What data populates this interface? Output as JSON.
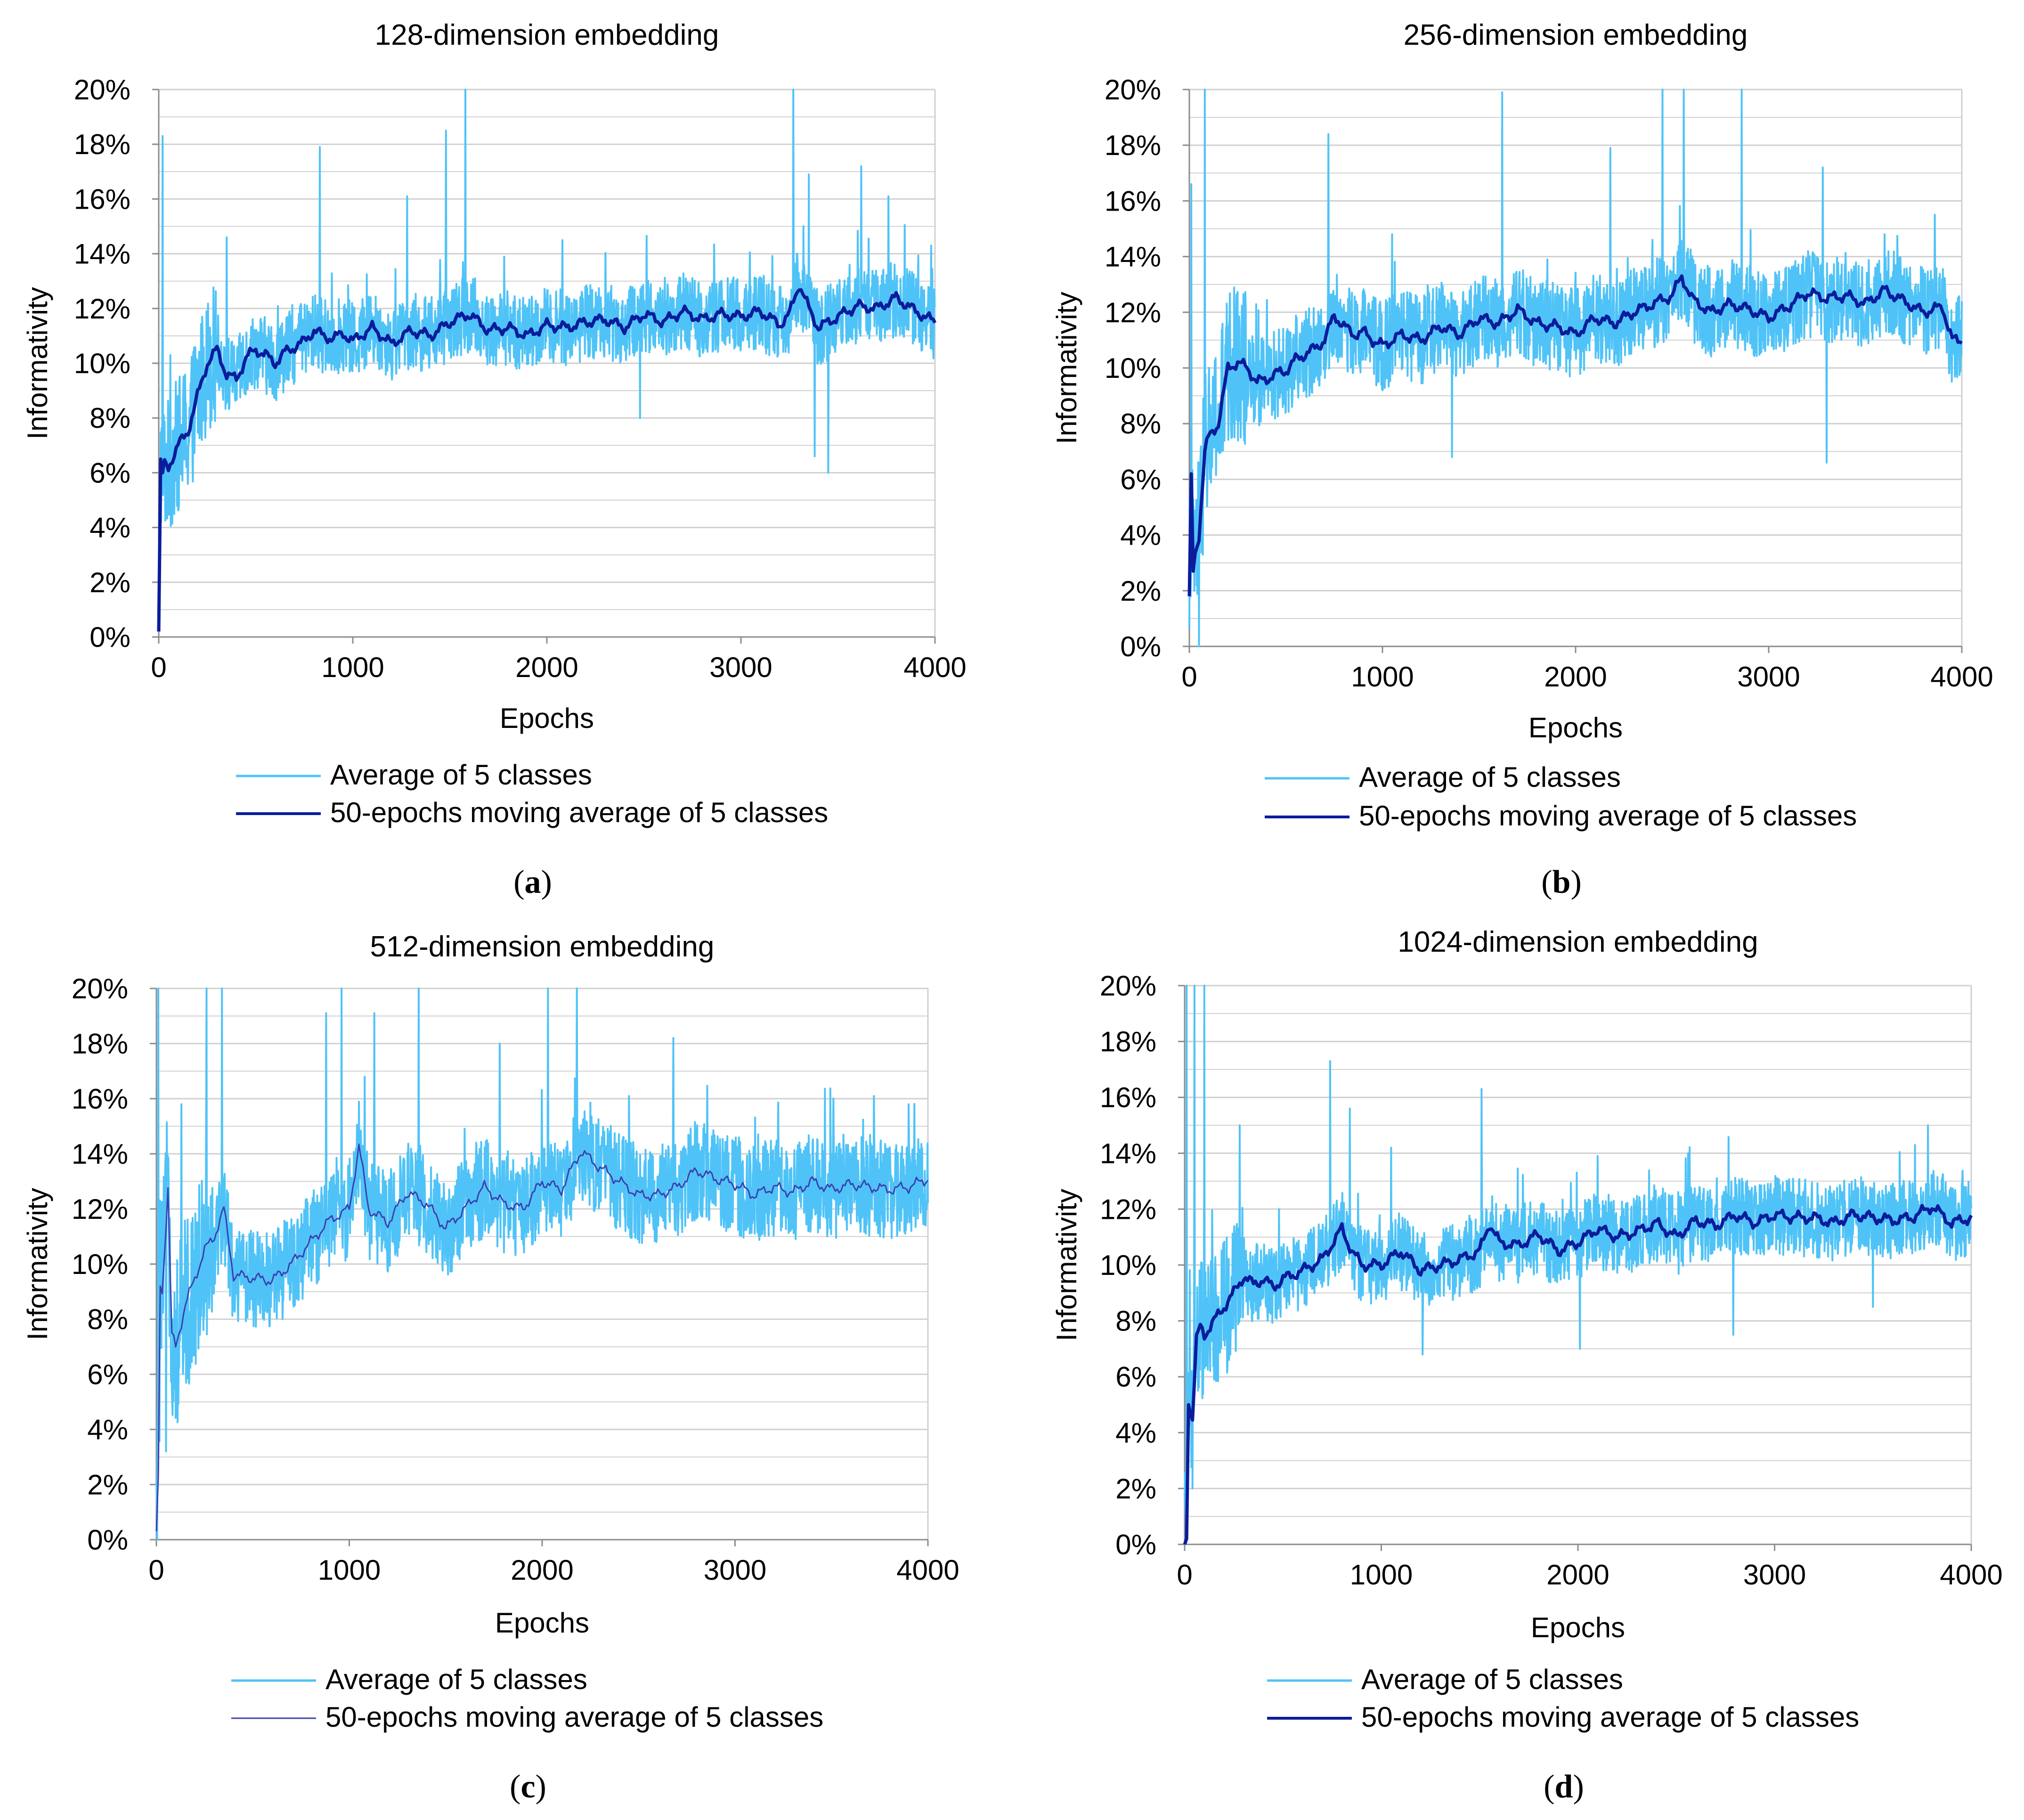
{
  "colors": {
    "raw_series": "#4FC3F7",
    "moving_average": "#0A1C9C",
    "moving_average_thin": "#3B3FB0",
    "gridline": "#D0D0D0",
    "axis": "#8C8C8C"
  },
  "chart_data": [
    {
      "id": "a",
      "type": "line",
      "title": "128-dimension embedding",
      "caption": "a",
      "xlabel": "Epochs",
      "ylabel": "Informativity",
      "xlim": [
        0,
        4000
      ],
      "ylim": [
        0,
        20
      ],
      "xticks": [
        "0",
        "1000",
        "2000",
        "3000",
        "4000"
      ],
      "yticks": [
        "0%",
        "2%",
        "4%",
        "6%",
        "8%",
        "10%",
        "12%",
        "14%",
        "16%",
        "18%",
        "20%"
      ],
      "grid": true,
      "legend": [
        "Average of 5 classes",
        "50-epochs moving average of 5 classes"
      ],
      "moving_average_style": "thick",
      "series": [
        {
          "name": "50-epochs moving average of 5 classes",
          "x": [
            0,
            10,
            20,
            30,
            50,
            80,
            100,
            150,
            200,
            250,
            300,
            350,
            400,
            450,
            500,
            550,
            600,
            650,
            700,
            750,
            800,
            850,
            900,
            950,
            1000,
            1100,
            1200,
            1300,
            1400,
            1500,
            1600,
            1700,
            1800,
            1900,
            2000,
            2100,
            2200,
            2300,
            2400,
            2500,
            2600,
            2700,
            2800,
            2900,
            3000,
            3100,
            3200,
            3250,
            3300,
            3350,
            3400,
            3500,
            3600,
            3700,
            3800,
            3900,
            4000
          ],
          "values": [
            0.2,
            6.5,
            6.0,
            6.3,
            6.2,
            6.7,
            7.0,
            7.5,
            8.8,
            10.0,
            10.5,
            9.6,
            9.4,
            10.2,
            10.5,
            10.3,
            10.0,
            10.4,
            10.6,
            10.8,
            11.2,
            11.0,
            10.9,
            11.1,
            10.8,
            11.3,
            10.7,
            11.2,
            11.0,
            11.5,
            11.8,
            11.2,
            11.3,
            11.0,
            11.4,
            11.3,
            11.5,
            11.6,
            11.3,
            11.8,
            11.5,
            11.9,
            11.6,
            11.8,
            11.7,
            11.9,
            11.4,
            11.8,
            12.9,
            12.0,
            11.3,
            11.7,
            12.1,
            12.0,
            12.4,
            11.9,
            11.5
          ]
        },
        {
          "name": "Average of 5 classes",
          "spikes": [
            [
              20,
              18.3
            ],
            [
              60,
              10.3
            ],
            [
              350,
              14.6
            ],
            [
              830,
              17.9
            ],
            [
              1280,
              16.1
            ],
            [
              1480,
              18.5
            ],
            [
              1580,
              20.0
            ],
            [
              2080,
              14.5
            ],
            [
              2480,
              8.0
            ],
            [
              3270,
              20.0
            ],
            [
              3350,
              16.9
            ],
            [
              3380,
              6.6
            ],
            [
              3450,
              6.0
            ],
            [
              3620,
              17.2
            ],
            [
              3760,
              16.1
            ],
            [
              3980,
              14.3
            ]
          ],
          "noise_amplitude": 1.4
        }
      ]
    },
    {
      "id": "b",
      "type": "line",
      "title": "256-dimension embedding",
      "caption": "b",
      "xlabel": "Epochs",
      "ylabel": "Informativity",
      "xlim": [
        0,
        4000
      ],
      "ylim": [
        0,
        20
      ],
      "xticks": [
        "0",
        "1000",
        "2000",
        "3000",
        "4000"
      ],
      "yticks": [
        "0%",
        "2%",
        "4%",
        "6%",
        "8%",
        "10%",
        "12%",
        "14%",
        "16%",
        "18%",
        "20%"
      ],
      "grid": true,
      "legend": [
        "Average of 5 classes",
        "50-epochs moving average of 5 classes"
      ],
      "moving_average_style": "thick",
      "series": [
        {
          "name": "50-epochs moving average of 5 classes",
          "x": [
            0,
            10,
            20,
            30,
            50,
            80,
            100,
            150,
            200,
            250,
            300,
            350,
            400,
            450,
            500,
            550,
            600,
            650,
            700,
            750,
            800,
            850,
            900,
            950,
            1000,
            1100,
            1200,
            1300,
            1400,
            1500,
            1600,
            1700,
            1800,
            1900,
            2000,
            2100,
            2200,
            2300,
            2400,
            2500,
            2550,
            2600,
            2700,
            2800,
            2900,
            3000,
            3100,
            3200,
            3300,
            3400,
            3500,
            3600,
            3700,
            3800,
            3900,
            3950,
            4000
          ],
          "values": [
            1.8,
            6.2,
            2.7,
            3.3,
            4.0,
            7.0,
            7.5,
            8.0,
            10.0,
            10.2,
            10.0,
            9.5,
            9.6,
            9.8,
            9.9,
            10.3,
            10.5,
            10.7,
            11.0,
            11.9,
            11.5,
            11.2,
            11.3,
            11.0,
            10.8,
            11.2,
            11.0,
            11.5,
            11.2,
            11.8,
            11.6,
            12.1,
            11.6,
            11.5,
            11.2,
            11.8,
            11.6,
            12.0,
            12.3,
            12.6,
            13.3,
            12.5,
            12.0,
            12.3,
            12.1,
            11.8,
            12.2,
            12.7,
            12.5,
            12.6,
            12.3,
            12.8,
            12.4,
            12.0,
            12.2,
            11.0,
            11.0
          ]
        },
        {
          "name": "Average of 5 classes",
          "spikes": [
            [
              10,
              16.6
            ],
            [
              50,
              0.0
            ],
            [
              80,
              20.0
            ],
            [
              200,
              11.5
            ],
            [
              720,
              18.4
            ],
            [
              1050,
              14.8
            ],
            [
              1360,
              6.8
            ],
            [
              1620,
              19.9
            ],
            [
              2180,
              17.9
            ],
            [
              2450,
              20.0
            ],
            [
              2560,
              20.0
            ],
            [
              2860,
              20.0
            ],
            [
              3280,
              17.2
            ],
            [
              3300,
              6.6
            ],
            [
              3600,
              14.8
            ],
            [
              3860,
              15.5
            ],
            [
              3990,
              10.1
            ]
          ],
          "noise_amplitude": 1.6
        }
      ]
    },
    {
      "id": "c",
      "type": "line",
      "title": "512-dimension embedding",
      "caption": "c",
      "xlabel": "Epochs",
      "ylabel": "Informativity",
      "xlim": [
        0,
        4000
      ],
      "ylim": [
        0,
        20
      ],
      "xticks": [
        "0",
        "1000",
        "2000",
        "3000",
        "4000"
      ],
      "yticks": [
        "0%",
        "2%",
        "4%",
        "6%",
        "8%",
        "10%",
        "12%",
        "14%",
        "16%",
        "18%",
        "20%"
      ],
      "grid": true,
      "legend": [
        "Average of 5 classes",
        "50-epochs moving average of 5 classes"
      ],
      "moving_average_style": "thin",
      "series": [
        {
          "name": "50-epochs moving average of 5 classes",
          "x": [
            0,
            10,
            20,
            30,
            60,
            80,
            100,
            150,
            200,
            250,
            300,
            350,
            400,
            500,
            600,
            700,
            800,
            900,
            1000,
            1050,
            1100,
            1200,
            1300,
            1400,
            1500,
            1600,
            1700,
            1800,
            1900,
            2000,
            2100,
            2200,
            2300,
            2400,
            2500,
            2600,
            2700,
            2800,
            2900,
            3000,
            3100,
            3200,
            3300,
            3400,
            3500,
            3600,
            3700,
            3800,
            3900,
            4000
          ],
          "values": [
            0.3,
            2.3,
            9.2,
            9.0,
            12.7,
            7.4,
            7.0,
            8.5,
            9.5,
            10.5,
            11.0,
            12.0,
            9.6,
            9.5,
            9.4,
            10.0,
            10.8,
            11.6,
            12.0,
            14.3,
            12.0,
            11.5,
            12.6,
            12.2,
            11.3,
            12.0,
            12.8,
            12.2,
            12.0,
            13.0,
            12.7,
            14.1,
            13.5,
            13.0,
            12.5,
            12.5,
            12.8,
            13.4,
            13.1,
            12.9,
            12.5,
            12.8,
            12.6,
            13.0,
            12.7,
            12.9,
            12.8,
            12.7,
            12.8,
            13.1
          ]
        },
        {
          "name": "Average of 5 classes",
          "spikes": [
            [
              10,
              20.0
            ],
            [
              50,
              3.2
            ],
            [
              130,
              15.8
            ],
            [
              260,
              20.0
            ],
            [
              340,
              20.0
            ],
            [
              380,
              11.5
            ],
            [
              880,
              19.1
            ],
            [
              960,
              20.0
            ],
            [
              1080,
              16.8
            ],
            [
              1130,
              19.1
            ],
            [
              1360,
              20.0
            ],
            [
              1780,
              18.0
            ],
            [
              2030,
              20.0
            ],
            [
              2180,
              20.0
            ],
            [
              2450,
              16.1
            ],
            [
              2680,
              18.2
            ],
            [
              3720,
              16.1
            ],
            [
              3900,
              15.8
            ]
          ],
          "noise_amplitude": 1.8
        }
      ]
    },
    {
      "id": "d",
      "type": "line",
      "title": "1024-dimension embedding",
      "caption": "d",
      "xlabel": "Epochs",
      "ylabel": "Informativity",
      "xlim": [
        0,
        4000
      ],
      "ylim": [
        0,
        20
      ],
      "xticks": [
        "0",
        "1000",
        "2000",
        "3000",
        "4000"
      ],
      "yticks": [
        "0%",
        "2%",
        "4%",
        "6%",
        "8%",
        "10%",
        "12%",
        "14%",
        "16%",
        "18%",
        "20%"
      ],
      "grid": true,
      "legend": [
        "Average of 5 classes",
        "50-epochs moving average of 5 classes"
      ],
      "moving_average_style": "thick",
      "series": [
        {
          "name": "50-epochs moving average of 5 classes",
          "x": [
            0,
            10,
            20,
            40,
            60,
            80,
            100,
            150,
            200,
            250,
            300,
            350,
            400,
            450,
            500,
            600,
            700,
            800,
            850,
            900,
            1000,
            1100,
            1200,
            1300,
            1400,
            1500,
            1550,
            1600,
            1700,
            1800,
            1900,
            2000,
            2100,
            2200,
            2300,
            2400,
            2500,
            2600,
            2700,
            2800,
            2900,
            3000,
            3100,
            3200,
            3300,
            3400,
            3500,
            3600,
            3700,
            3800,
            3900,
            4000
          ],
          "values": [
            0.0,
            0.2,
            5.0,
            4.5,
            7.3,
            7.8,
            7.5,
            8.0,
            8.5,
            9.0,
            9.6,
            9.3,
            9.5,
            9.2,
            9.5,
            9.8,
            10.2,
            11.3,
            10.5,
            10.0,
            10.0,
            10.5,
            9.8,
            10.0,
            10.2,
            10.5,
            11.5,
            10.8,
            10.7,
            11.1,
            10.5,
            10.8,
            11.3,
            11.0,
            11.2,
            11.5,
            11.0,
            11.6,
            11.4,
            11.8,
            11.5,
            11.8,
            11.7,
            11.7,
            11.5,
            11.8,
            11.7,
            11.6,
            11.7,
            12.1,
            11.5,
            11.7
          ]
        },
        {
          "name": "Average of 5 classes",
          "spikes": [
            [
              10,
              20.0
            ],
            [
              50,
              20.0
            ],
            [
              100,
              20.0
            ],
            [
              280,
              15.0
            ],
            [
              480,
              12.0
            ],
            [
              740,
              17.3
            ],
            [
              840,
              15.6
            ],
            [
              1050,
              14.2
            ],
            [
              1210,
              6.8
            ],
            [
              1510,
              16.3
            ],
            [
              2010,
              7.0
            ],
            [
              2100,
              13.9
            ],
            [
              2560,
              14.0
            ],
            [
              2790,
              7.5
            ],
            [
              3500,
              8.5
            ],
            [
              3780,
              15.0
            ],
            [
              3980,
              12.4
            ]
          ],
          "noise_amplitude": 1.4
        }
      ]
    }
  ]
}
